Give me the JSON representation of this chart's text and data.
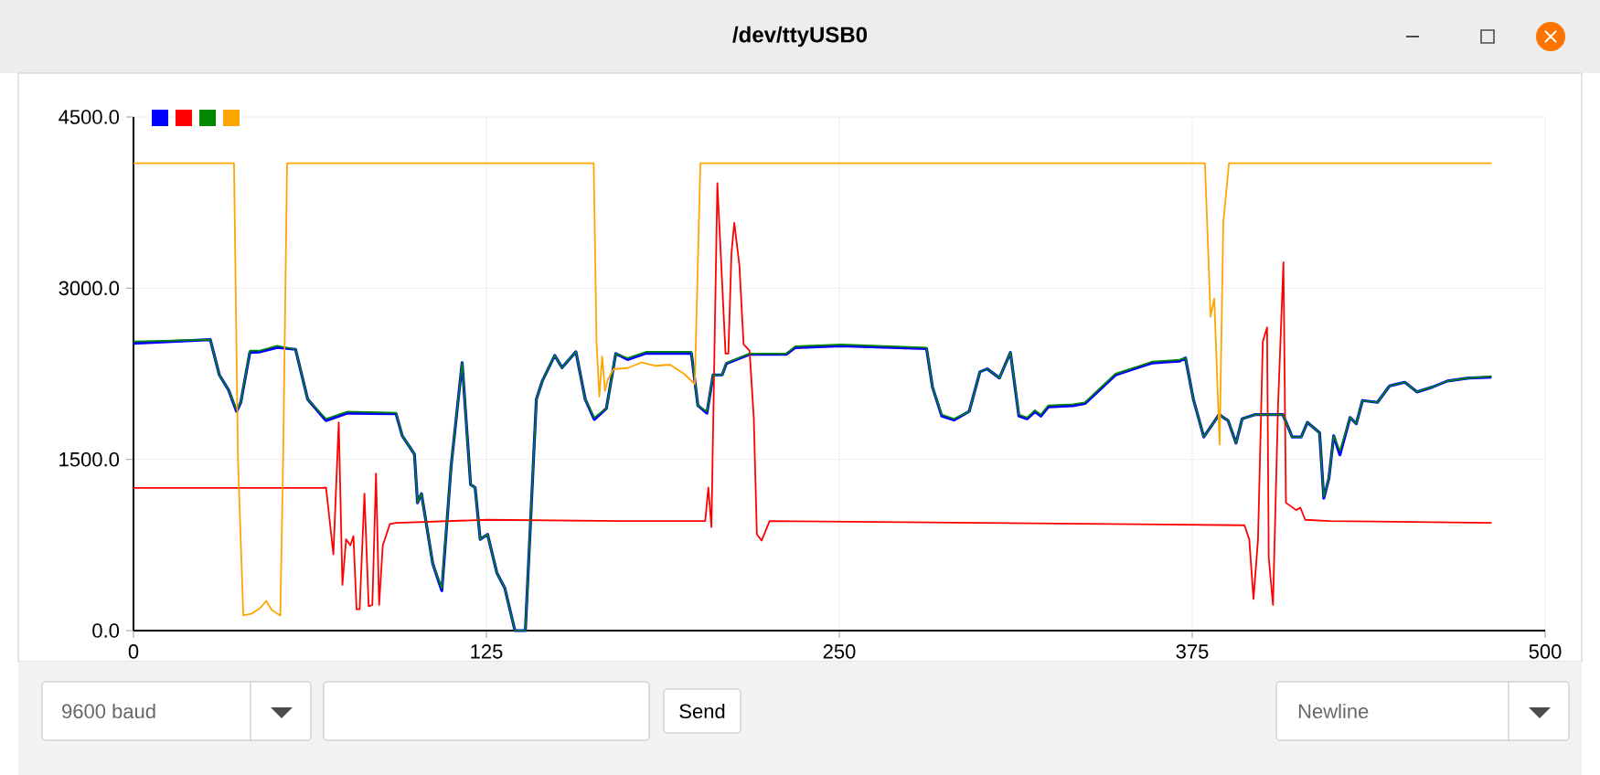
{
  "chart_data": {
    "type": "line",
    "title": "/dev/ttyUSB0",
    "x": [
      0,
      27.2,
      30.4,
      33.7,
      36.5,
      38,
      41.2,
      44.5,
      50.9,
      57.4,
      61.7,
      68.2,
      75.8,
      93,
      95.2,
      99.5,
      100.6,
      102,
      106,
      109.2,
      112.5,
      116.4,
      119.4,
      121,
      122.8,
      125.4,
      128.7,
      131.5,
      135.1,
      138.8,
      142.7,
      144.8,
      149.2,
      151.8,
      156.7,
      160,
      163.2,
      167.5,
      170.8,
      175,
      181.5,
      197.6,
      199.9,
      203.1,
      205.3,
      208.5,
      210,
      218.2,
      231.2,
      234.4,
      250.6,
      280.9,
      283,
      286.3,
      290.6,
      296,
      299.8,
      302.4,
      306.7,
      310.6,
      313.6,
      316.5,
      319.3,
      321.4,
      324,
      332.7,
      337,
      347.8,
      356.4,
      360.7,
      370.4,
      372.6,
      375.4,
      379.1,
      384.5,
      387.7,
      390.5,
      392.7,
      397.4,
      407.1,
      410.4,
      413.6,
      415.8,
      420.1,
      421.6,
      423.4,
      425.1,
      427.3,
      430.9,
      433.1,
      435.3,
      440.6,
      444.9,
      450.3,
      454.6,
      460,
      465.4,
      473,
      481
    ],
    "series": [
      {
        "color": "#0000ff",
        "values": [
          2517,
          2549,
          2240,
          2107,
          1920,
          2000,
          2437,
          2440,
          2480,
          2464,
          2027,
          1840,
          1905,
          1900,
          1707,
          1547,
          1120,
          1200,
          587,
          350,
          1440,
          2347,
          1280,
          1253,
          800,
          843,
          507,
          373,
          0,
          0,
          2027,
          2187,
          2411,
          2304,
          2443,
          2027,
          1850,
          1947,
          2427,
          2375,
          2430,
          2430,
          1973,
          1905,
          2240,
          2240,
          2340,
          2420,
          2420,
          2480,
          2495,
          2470,
          2133,
          1880,
          1845,
          1920,
          2267,
          2293,
          2213,
          2437,
          1880,
          1855,
          1920,
          1880,
          1960,
          1970,
          1990,
          2240,
          2310,
          2345,
          2360,
          2389,
          2027,
          1696,
          1893,
          1840,
          1643,
          1856,
          1893,
          1893,
          1696,
          1696,
          1824,
          1733,
          1160,
          1333,
          1707,
          1540,
          1867,
          1813,
          2016,
          2000,
          2144,
          2176,
          2091,
          2133,
          2187,
          2213,
          2220
        ]
      },
      {
        "color": "#ff0000",
        "x": [
          0,
          67,
          68.2,
          70.8,
          72.7,
          74,
          75.3,
          76.8,
          77.9,
          79,
          80.1,
          81.8,
          83.3,
          84.6,
          85.9,
          87,
          88.3,
          90.8,
          93,
          125.4,
          172.9,
          202.5,
          203.6,
          204.7,
          206.8,
          209.7,
          210.7,
          211.8,
          212.8,
          214.6,
          216.1,
          218.2,
          219.7,
          220.8,
          222.5,
          225.3,
          393.5,
          395.2,
          396.7,
          398.3,
          400,
          401.5,
          402.1,
          403.6,
          405.4,
          407.3,
          408.2,
          411.8,
          413.3,
          415,
          423.6,
          481
        ],
        "values": [
          1250,
          1250,
          1253,
          667,
          1824,
          400,
          800,
          747,
          827,
          187,
          187,
          1200,
          213,
          224,
          1376,
          224,
          747,
          933,
          944,
          971,
          960,
          960,
          1253,
          907,
          3920,
          2427,
          2427,
          3307,
          3573,
          3200,
          2507,
          2453,
          1867,
          843,
          789,
          960,
          923,
          800,
          277,
          800,
          2533,
          2656,
          640,
          224,
          1973,
          3227,
          1120,
          1056,
          1077,
          971,
          960,
          944
        ]
      },
      {
        "color": "#008800",
        "values": [
          2533,
          2549,
          2240,
          2107,
          1936,
          2000,
          2453,
          2453,
          2496,
          2464,
          2027,
          1856,
          1920,
          1909,
          1707,
          1547,
          1120,
          1200,
          587,
          373,
          1440,
          2347,
          1280,
          1253,
          800,
          843,
          507,
          373,
          0,
          0,
          2027,
          2187,
          2411,
          2304,
          2443,
          2027,
          1867,
          1947,
          2427,
          2389,
          2443,
          2443,
          1973,
          1920,
          2240,
          2240,
          2347,
          2427,
          2427,
          2491,
          2507,
          2480,
          2133,
          1893,
          1856,
          1920,
          2267,
          2293,
          2213,
          2437,
          1893,
          1867,
          1931,
          1893,
          1973,
          1984,
          2000,
          2251,
          2320,
          2357,
          2373,
          2389,
          2027,
          1696,
          1893,
          1840,
          1643,
          1856,
          1893,
          1893,
          1696,
          1696,
          1824,
          1733,
          1173,
          1333,
          1707,
          1573,
          1867,
          1813,
          2016,
          2000,
          2144,
          2176,
          2091,
          2133,
          2187,
          2213,
          2229
        ]
      },
      {
        "color": "#ffa500",
        "x": [
          0,
          35.6,
          37,
          38.9,
          42,
          45,
          47,
          49,
          52,
          53,
          54.4,
          163,
          164,
          165,
          166,
          167,
          168,
          170,
          175,
          180,
          185,
          190,
          195,
          198.8,
          200.8,
          379.5,
          381.5,
          382.8,
          384.7,
          386,
          388,
          481
        ],
        "values": [
          4095,
          4095,
          1500,
          133,
          150,
          200,
          260,
          180,
          133,
          1500,
          4095,
          4095,
          2530,
          2050,
          2400,
          2100,
          2200,
          2290,
          2300,
          2350,
          2320,
          2330,
          2250,
          2160,
          4095,
          4095,
          2750,
          2910,
          1630,
          3570,
          4095,
          4095
        ]
      }
    ],
    "xlim": [
      0,
      500
    ],
    "xticks": [
      0,
      125,
      250,
      375,
      500
    ],
    "ylim": [
      0,
      4500
    ],
    "yticks": [
      {
        "value": 0,
        "label": "0.0"
      },
      {
        "value": 1500,
        "label": "1500.0"
      },
      {
        "value": 3000,
        "label": "3000.0"
      },
      {
        "value": 4500,
        "label": "4500.0"
      }
    ],
    "grid": true,
    "annotations": [
      "9600 baud",
      "Send",
      "Newline"
    ]
  }
}
